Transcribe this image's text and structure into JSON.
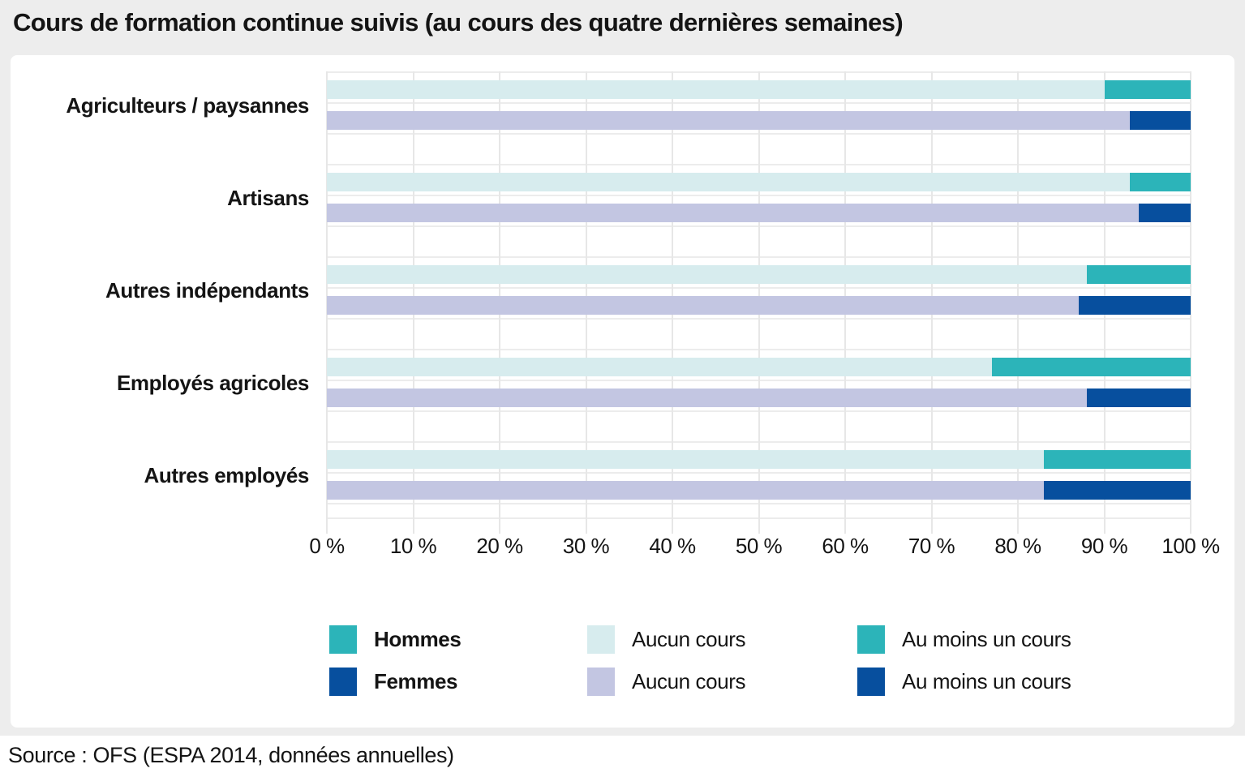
{
  "title": "Cours de formation continue suivis (au cours des quatre dernières semaines)",
  "source": "Source : OFS (ESPA 2014, données annuelles)",
  "colors": {
    "teal": "#2cb4b9",
    "teal_light": "#d7ecee",
    "blue": "#074f9e",
    "blue_light": "#c3c6e2",
    "card_bg": "#ededed",
    "grid_vertical": "#e7e7e7",
    "grid_horizontal": "#ececec"
  },
  "chart_data": {
    "type": "bar",
    "orientation": "horizontal",
    "stacked": true,
    "title": "Cours de formation continue suivis (au cours des quatre dernières semaines)",
    "categories": [
      "Agriculteurs / paysannes",
      "Artisans",
      "Autres indépendants",
      "Employés agricoles",
      "Autres employés"
    ],
    "series": [
      {
        "name": "Hommes – Aucun cours",
        "color_key": "teal_light",
        "values": [
          90,
          93,
          88,
          77,
          83
        ]
      },
      {
        "name": "Hommes – Au moins un cours",
        "color_key": "teal",
        "values": [
          10,
          7,
          12,
          23,
          17
        ]
      },
      {
        "name": "Femmes – Aucun cours",
        "color_key": "blue_light",
        "values": [
          93,
          94,
          87,
          88,
          83
        ]
      },
      {
        "name": "Femmes – Au moins un cours",
        "color_key": "blue",
        "values": [
          7,
          6,
          13,
          12,
          17
        ]
      }
    ],
    "xlim": [
      0,
      100
    ],
    "x_ticks": [
      "0 %",
      "10 %",
      "20 %",
      "30 %",
      "40 %",
      "50 %",
      "60 %",
      "70 %",
      "80 %",
      "90 %",
      "100 %"
    ],
    "grid": "vertical-and-row-bands",
    "legend_position": "bottom"
  },
  "legend": {
    "columns": [
      {
        "items": [
          {
            "color_key": "teal",
            "label": "Hommes",
            "bold": true
          },
          {
            "color_key": "blue",
            "label": "Femmes",
            "bold": true
          }
        ]
      },
      {
        "items": [
          {
            "color_key": "teal_light",
            "label": "Aucun cours",
            "bold": false
          },
          {
            "color_key": "blue_light",
            "label": "Aucun cours",
            "bold": false
          }
        ]
      },
      {
        "items": [
          {
            "color_key": "teal",
            "label": "Au moins un cours",
            "bold": false
          },
          {
            "color_key": "blue",
            "label": "Au moins un cours",
            "bold": false
          }
        ]
      }
    ]
  }
}
